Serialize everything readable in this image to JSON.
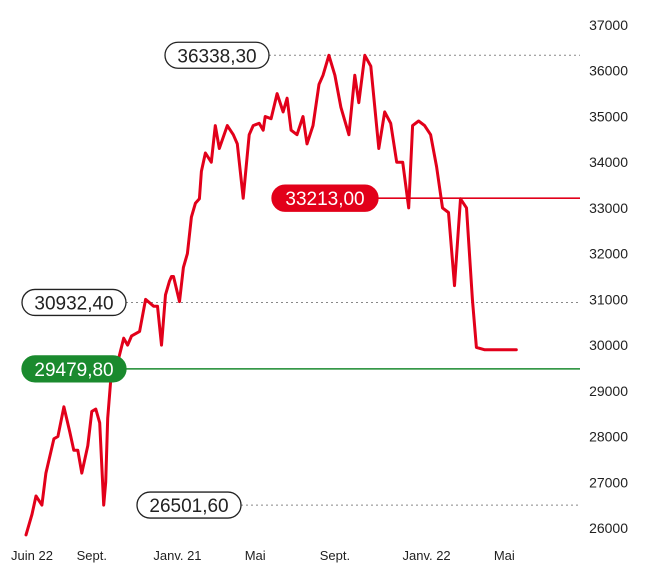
{
  "chart_data": {
    "type": "line",
    "title": "",
    "xlabel": "",
    "ylabel": "",
    "ylim": [
      25800,
      37000
    ],
    "grid": false,
    "y_ticks": [
      37000,
      36000,
      35000,
      34000,
      33000,
      32000,
      31000,
      30000,
      29000,
      28000,
      27000,
      26000
    ],
    "x_ticks": [
      "Juin 22",
      "Sept.",
      "Janv. 21",
      "Mai",
      "Sept.",
      "Janv. 22",
      "Mai"
    ],
    "x_tick_t": [
      0.3,
      3.3,
      7.6,
      11.5,
      15.5,
      20.1,
      24.0
    ],
    "series": [
      {
        "color": "#e2001a",
        "t": [
          0.0,
          0.3,
          0.5,
          0.8,
          1.0,
          1.4,
          1.6,
          1.9,
          2.2,
          2.4,
          2.6,
          2.8,
          3.1,
          3.3,
          3.5,
          3.7,
          3.9,
          4.0,
          4.1,
          4.3,
          4.4,
          4.7,
          4.9,
          5.1,
          5.3,
          5.7,
          6.0,
          6.4,
          6.6,
          6.8,
          7.0,
          7.2,
          7.3,
          7.4,
          7.7,
          7.9,
          8.1,
          8.3,
          8.5,
          8.7,
          8.8,
          9.0,
          9.3,
          9.5,
          9.7,
          10.1,
          10.4,
          10.6,
          10.9,
          11.2,
          11.4,
          11.7,
          11.9,
          12.0,
          12.3,
          12.6,
          12.9,
          13.1,
          13.3,
          13.6,
          13.9,
          14.1,
          14.4,
          14.7,
          14.9,
          15.2,
          15.5,
          15.8,
          16.2,
          16.5,
          16.7,
          17.0,
          17.3,
          17.5,
          17.7,
          18.0,
          18.3,
          18.6,
          18.9,
          19.2,
          19.4,
          19.7,
          20.0,
          20.3,
          20.6,
          20.9,
          21.2,
          21.5,
          21.8,
          22.1,
          22.4,
          22.6,
          23.0,
          23.3,
          23.5,
          23.8,
          24.0,
          24.3,
          24.6
        ],
        "values": [
          25850,
          26300,
          26700,
          26500,
          27200,
          27950,
          28000,
          28650,
          28100,
          27700,
          27700,
          27200,
          27800,
          28550,
          28600,
          28300,
          26501.6,
          27000,
          28400,
          29500,
          29300,
          29800,
          30150,
          30000,
          30200,
          30300,
          31000,
          30850,
          30850,
          30000,
          31100,
          31400,
          31500,
          31500,
          30950,
          31700,
          32000,
          32800,
          33100,
          33200,
          33800,
          34200,
          34000,
          34800,
          34300,
          34800,
          34600,
          34400,
          33213,
          34600,
          34800,
          34850,
          34700,
          35000,
          34950,
          35500,
          35100,
          35400,
          34700,
          34600,
          35000,
          34400,
          34800,
          35700,
          35900,
          36338.3,
          35900,
          35200,
          34600,
          35900,
          35300,
          36338.3,
          36100,
          35200,
          34300,
          35100,
          34850,
          34000,
          34000,
          33000,
          34800,
          34900,
          34800,
          34600,
          33900,
          33000,
          32900,
          31300,
          33200,
          33000,
          31000,
          29950,
          29900,
          29900,
          29900,
          29900,
          29900,
          29900,
          29900
        ]
      }
    ],
    "reference_lines": [
      {
        "value": 36338.3,
        "label": "36338,30",
        "color": "#888888",
        "style": "dotted",
        "pill": "outline"
      },
      {
        "value": 33213.0,
        "label": "33213,00",
        "color": "#e2001a",
        "style": "solid",
        "pill": "filled"
      },
      {
        "value": 30932.4,
        "label": "30932,40",
        "color": "#888888",
        "style": "dotted",
        "pill": "outline"
      },
      {
        "value": 29479.8,
        "label": "29479,80",
        "color": "#1a8a2e",
        "style": "solid",
        "pill": "filled"
      },
      {
        "value": 26501.6,
        "label": "26501,60",
        "color": "#888888",
        "style": "dotted",
        "pill": "outline"
      }
    ]
  }
}
